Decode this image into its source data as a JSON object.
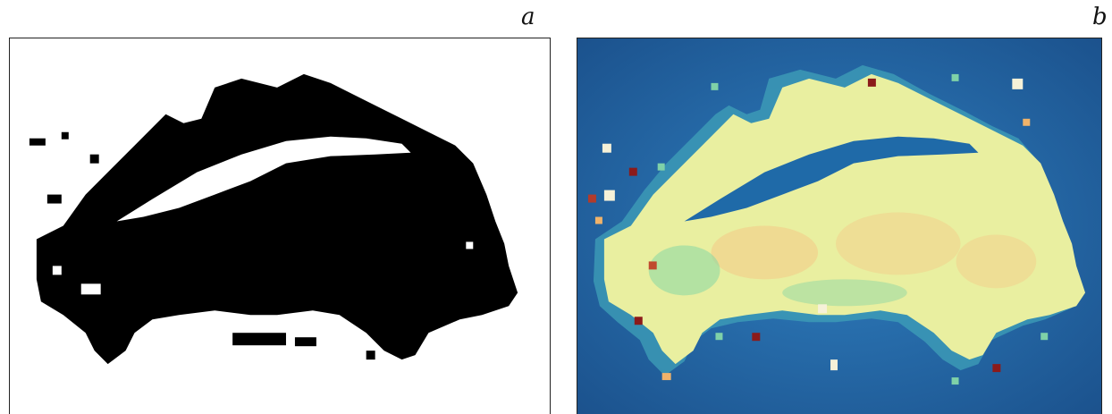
{
  "figure": {
    "panels": [
      {
        "label": "a",
        "kind": "binary-mask",
        "colors": {
          "foreground": "#000000",
          "background": "#ffffff"
        }
      },
      {
        "label": "b",
        "kind": "heatmap-image",
        "colors": {
          "background": "#1f63a3",
          "low": "#2e86c1",
          "mid": "#7fd1a8",
          "high": "#f3f3a6",
          "peak": "#f0b36a",
          "hot": "#8b1a1a"
        }
      }
    ]
  }
}
